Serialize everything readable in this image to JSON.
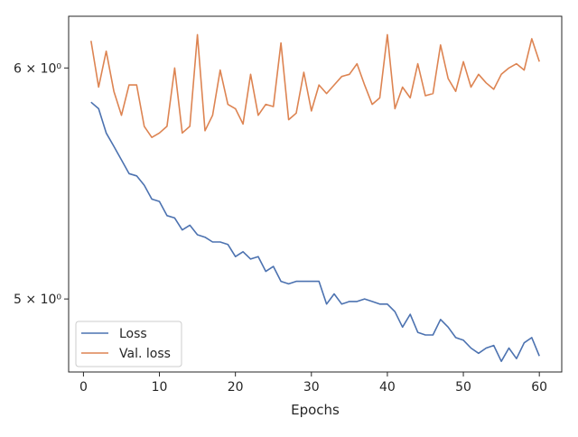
{
  "chart_data": {
    "type": "line",
    "xlabel": "Epochs",
    "ylabel": "",
    "y_scale": "log",
    "xlim": [
      -1.95,
      62.95
    ],
    "ylim": [
      4.72,
      6.25
    ],
    "x_ticks": [
      0,
      10,
      20,
      30,
      40,
      50,
      60
    ],
    "x_tick_labels": [
      "0",
      "10",
      "20",
      "30",
      "40",
      "50",
      "60"
    ],
    "y_ticks": [
      5,
      6
    ],
    "y_tick_labels": [
      "5 × 10⁰",
      "6 × 10⁰"
    ],
    "grid": false,
    "legend_position": "lower-left",
    "x": [
      1,
      2,
      3,
      4,
      5,
      6,
      7,
      8,
      9,
      10,
      11,
      12,
      13,
      14,
      15,
      16,
      17,
      18,
      19,
      20,
      21,
      22,
      23,
      24,
      25,
      26,
      27,
      28,
      29,
      30,
      31,
      32,
      33,
      34,
      35,
      36,
      37,
      38,
      39,
      40,
      41,
      42,
      43,
      44,
      45,
      46,
      47,
      48,
      49,
      50,
      51,
      52,
      53,
      54,
      55,
      56,
      57,
      58,
      59,
      60
    ],
    "series": [
      {
        "name": "Loss",
        "color": "#4c72b0",
        "values": [
          5.84,
          5.81,
          5.7,
          5.64,
          5.58,
          5.52,
          5.51,
          5.47,
          5.41,
          5.4,
          5.34,
          5.33,
          5.28,
          5.3,
          5.26,
          5.25,
          5.23,
          5.23,
          5.22,
          5.17,
          5.19,
          5.16,
          5.17,
          5.11,
          5.13,
          5.07,
          5.06,
          5.07,
          5.07,
          5.07,
          5.07,
          4.98,
          5.02,
          4.98,
          4.99,
          4.99,
          5.0,
          4.99,
          4.98,
          4.98,
          4.95,
          4.89,
          4.94,
          4.87,
          4.86,
          4.86,
          4.92,
          4.89,
          4.85,
          4.84,
          4.81,
          4.79,
          4.81,
          4.82,
          4.76,
          4.81,
          4.77,
          4.83,
          4.85,
          4.78
        ]
      },
      {
        "name": "Val. loss",
        "color": "#dd8452",
        "values": [
          6.13,
          5.91,
          6.08,
          5.89,
          5.78,
          5.92,
          5.92,
          5.73,
          5.68,
          5.7,
          5.73,
          6.0,
          5.7,
          5.73,
          6.16,
          5.71,
          5.78,
          5.99,
          5.83,
          5.81,
          5.74,
          5.97,
          5.78,
          5.83,
          5.82,
          6.12,
          5.76,
          5.79,
          5.98,
          5.8,
          5.92,
          5.88,
          5.92,
          5.96,
          5.97,
          6.02,
          5.92,
          5.83,
          5.86,
          6.16,
          5.81,
          5.91,
          5.86,
          6.02,
          5.87,
          5.88,
          6.11,
          5.95,
          5.89,
          6.03,
          5.91,
          5.97,
          5.93,
          5.9,
          5.97,
          6.0,
          6.02,
          5.99,
          6.14,
          6.03
        ]
      }
    ]
  }
}
